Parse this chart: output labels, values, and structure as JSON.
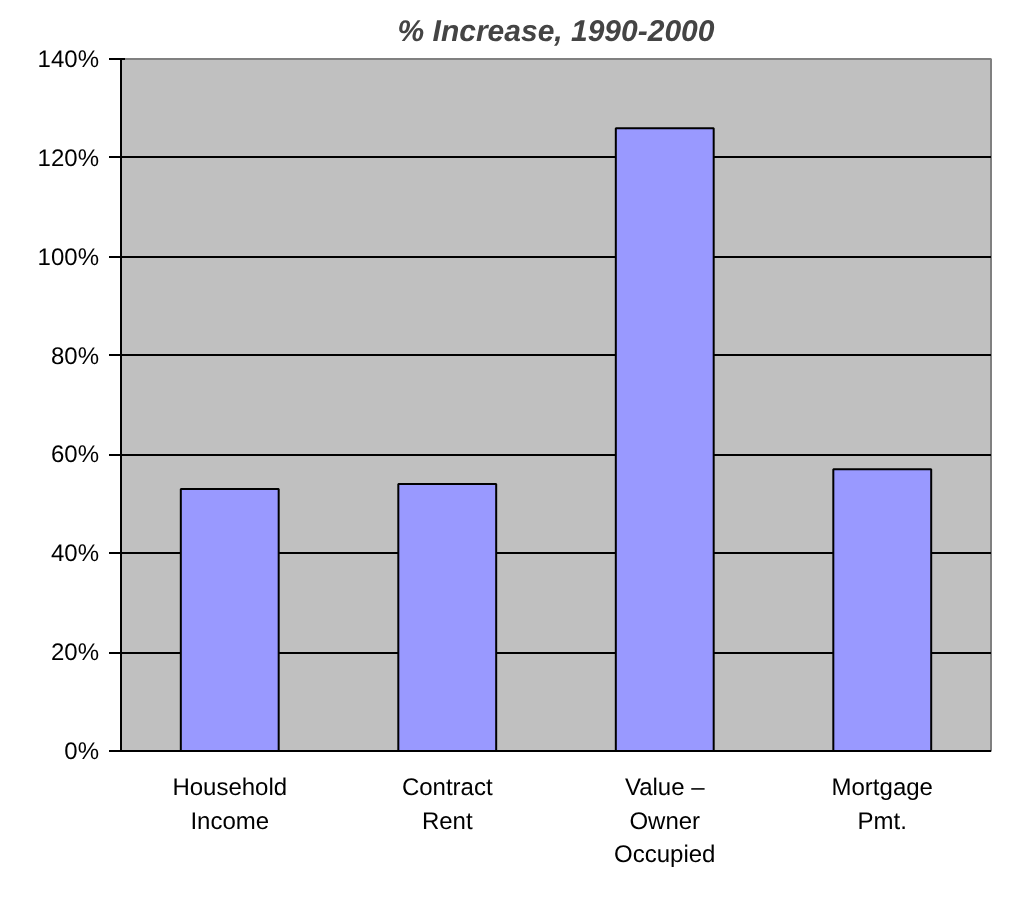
{
  "chart_data": {
    "type": "bar",
    "title": "% Increase, 1990-2000",
    "categories": [
      "Household\nIncome",
      "Contract\nRent",
      "Value –\nOwner\nOccupied",
      "Mortgage\nPmt."
    ],
    "values": [
      53,
      54,
      126,
      57
    ],
    "color": "#9999ff",
    "ylim": [
      0,
      140
    ],
    "yticks": [
      {
        "value": 0,
        "label": "0%"
      },
      {
        "value": 20,
        "label": "20%"
      },
      {
        "value": 40,
        "label": "40%"
      },
      {
        "value": 60,
        "label": "60%"
      },
      {
        "value": 80,
        "label": "80%"
      },
      {
        "value": 100,
        "label": "100%"
      },
      {
        "value": 120,
        "label": "120%"
      },
      {
        "value": 140,
        "label": "140%"
      }
    ],
    "grid": "y"
  }
}
